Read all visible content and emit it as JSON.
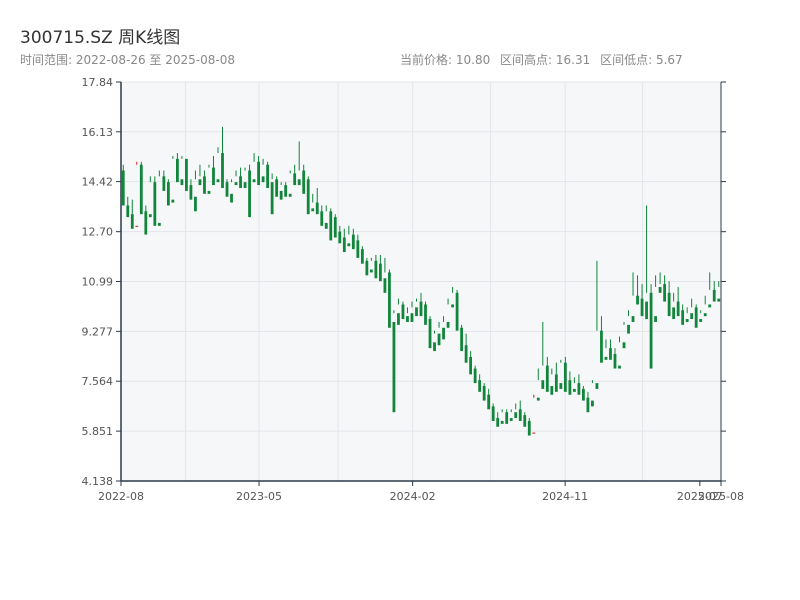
{
  "header": {
    "title": "300715.SZ 周K线图",
    "subtitle": "时间范围: 2022-08-26 至 2025-08-08",
    "current_price": "当前价格: 10.80",
    "range_high": "区间高点: 16.31",
    "range_low": "区间低点: 5.67"
  },
  "colors": {
    "up": "#c8151d",
    "down": "#11863b",
    "plot_bg": "#f6f7f9",
    "grid": "#e3e5ea",
    "axis": "#2b3a4a"
  },
  "chart_data": {
    "type": "candlestick",
    "title": "300715.SZ 周K线图",
    "y_ticks": [
      "4.138",
      "5.851",
      "7.564",
      "9.277",
      "10.99",
      "12.70",
      "14.42",
      "16.13",
      "17.84"
    ],
    "ylim": [
      4.138,
      17.84
    ],
    "x_ticks": [
      {
        "label": "2022-08",
        "date": "2022-08-26"
      },
      {
        "label": "2023-05",
        "date": "2023-05-01"
      },
      {
        "label": "2024-02",
        "date": "2024-02-01"
      },
      {
        "label": "2024-11",
        "date": "2024-11-01"
      },
      {
        "label": "2025-07",
        "date": "2025-07-01"
      },
      {
        "label": "2025-08",
        "date": "2025-08-08"
      }
    ],
    "x_range": [
      "2022-08-26",
      "2025-08-08"
    ],
    "grid": true,
    "ohlc": [
      [
        14.8,
        15.0,
        13.8,
        13.6
      ],
      [
        13.6,
        13.9,
        13.3,
        13.2
      ],
      [
        13.3,
        13.8,
        12.9,
        12.8
      ],
      [
        12.9,
        15.1,
        15.0,
        12.9
      ],
      [
        15.0,
        15.1,
        13.4,
        13.3
      ],
      [
        13.4,
        13.6,
        13.3,
        12.6
      ],
      [
        13.3,
        14.6,
        14.4,
        13.2
      ],
      [
        14.4,
        14.6,
        13.0,
        12.9
      ],
      [
        13.0,
        14.8,
        14.6,
        12.9
      ],
      [
        14.6,
        14.8,
        14.4,
        14.1
      ],
      [
        14.4,
        14.5,
        13.8,
        13.6
      ],
      [
        13.8,
        15.3,
        15.2,
        13.7
      ],
      [
        15.2,
        15.4,
        14.5,
        14.4
      ],
      [
        14.5,
        15.3,
        15.2,
        14.3
      ],
      [
        15.2,
        15.2,
        14.3,
        14.1
      ],
      [
        14.3,
        14.5,
        13.9,
        13.8
      ],
      [
        13.9,
        14.8,
        14.5,
        13.4
      ],
      [
        14.5,
        15.0,
        14.6,
        14.3
      ],
      [
        14.6,
        14.8,
        14.1,
        14.0
      ],
      [
        14.1,
        15.0,
        14.9,
        14.0
      ],
      [
        14.9,
        15.3,
        14.5,
        14.3
      ],
      [
        14.5,
        15.6,
        15.4,
        14.4
      ],
      [
        15.4,
        16.3,
        14.4,
        14.2
      ],
      [
        14.4,
        14.5,
        14.0,
        13.9
      ],
      [
        14.0,
        14.5,
        14.4,
        13.7
      ],
      [
        14.4,
        14.8,
        14.6,
        14.3
      ],
      [
        14.6,
        14.9,
        14.4,
        14.2
      ],
      [
        14.4,
        14.9,
        14.8,
        14.2
      ],
      [
        14.8,
        15.0,
        14.5,
        13.2
      ],
      [
        14.5,
        15.4,
        15.1,
        14.4
      ],
      [
        15.1,
        15.3,
        14.6,
        14.3
      ],
      [
        14.6,
        15.2,
        15.0,
        14.4
      ],
      [
        15.0,
        15.1,
        14.4,
        14.2
      ],
      [
        14.4,
        14.7,
        14.5,
        13.3
      ],
      [
        14.5,
        14.6,
        14.1,
        13.9
      ],
      [
        14.1,
        14.4,
        14.3,
        13.8
      ],
      [
        14.3,
        14.4,
        14.0,
        13.9
      ],
      [
        14.0,
        14.8,
        14.7,
        13.9
      ],
      [
        14.7,
        15.0,
        14.5,
        14.3
      ],
      [
        14.5,
        15.8,
        14.8,
        14.3
      ],
      [
        14.8,
        15.0,
        14.5,
        14.0
      ],
      [
        14.5,
        14.6,
        13.5,
        13.3
      ],
      [
        13.5,
        14.0,
        13.7,
        13.4
      ],
      [
        13.7,
        14.2,
        13.4,
        13.3
      ],
      [
        13.4,
        13.6,
        13.0,
        12.9
      ],
      [
        13.0,
        13.6,
        13.4,
        12.8
      ],
      [
        13.4,
        13.5,
        13.2,
        12.4
      ],
      [
        13.2,
        13.3,
        12.7,
        12.5
      ],
      [
        12.7,
        12.9,
        12.5,
        12.3
      ],
      [
        12.5,
        12.8,
        12.3,
        12.0
      ],
      [
        12.3,
        12.9,
        12.6,
        12.2
      ],
      [
        12.6,
        12.8,
        12.4,
        12.1
      ],
      [
        12.4,
        12.6,
        12.1,
        11.8
      ],
      [
        12.1,
        12.2,
        11.7,
        11.6
      ],
      [
        11.7,
        11.8,
        11.4,
        11.2
      ],
      [
        11.4,
        11.8,
        11.7,
        11.3
      ],
      [
        11.7,
        11.9,
        11.6,
        11.1
      ],
      [
        11.6,
        11.9,
        11.1,
        11.0
      ],
      [
        11.1,
        11.8,
        11.3,
        10.6
      ],
      [
        11.3,
        11.4,
        9.6,
        9.4
      ],
      [
        9.6,
        10.0,
        9.9,
        6.5
      ],
      [
        9.9,
        10.4,
        10.2,
        9.5
      ],
      [
        10.2,
        10.3,
        9.8,
        9.7
      ],
      [
        9.8,
        10.1,
        9.9,
        9.6
      ],
      [
        9.9,
        10.3,
        10.1,
        9.6
      ],
      [
        10.1,
        10.4,
        10.3,
        9.8
      ],
      [
        10.3,
        10.6,
        10.2,
        9.8
      ],
      [
        10.2,
        10.3,
        9.7,
        9.5
      ],
      [
        9.7,
        9.8,
        8.9,
        8.7
      ],
      [
        8.9,
        9.3,
        9.2,
        8.6
      ],
      [
        9.2,
        9.6,
        9.4,
        8.8
      ],
      [
        9.4,
        9.8,
        9.6,
        9.0
      ],
      [
        9.6,
        10.4,
        10.2,
        9.4
      ],
      [
        10.2,
        10.8,
        10.6,
        10.1
      ],
      [
        10.6,
        10.7,
        9.4,
        9.3
      ],
      [
        9.4,
        9.5,
        8.8,
        8.6
      ],
      [
        8.8,
        9.2,
        8.4,
        8.2
      ],
      [
        8.4,
        8.6,
        8.0,
        7.8
      ],
      [
        8.0,
        8.1,
        7.6,
        7.5
      ],
      [
        7.6,
        7.8,
        7.4,
        7.2
      ],
      [
        7.4,
        7.5,
        7.1,
        6.9
      ],
      [
        7.1,
        7.3,
        6.7,
        6.6
      ],
      [
        6.7,
        6.8,
        6.3,
        6.2
      ],
      [
        6.3,
        6.5,
        6.2,
        6.0
      ],
      [
        6.2,
        6.6,
        6.5,
        6.1
      ],
      [
        6.5,
        6.6,
        6.3,
        6.1
      ],
      [
        6.3,
        6.6,
        6.5,
        6.2
      ],
      [
        6.5,
        6.8,
        6.6,
        6.3
      ],
      [
        6.6,
        6.9,
        6.4,
        6.2
      ],
      [
        6.4,
        6.5,
        6.2,
        6.0
      ],
      [
        6.2,
        6.3,
        5.8,
        5.7
      ],
      [
        5.8,
        7.1,
        7.0,
        5.8
      ],
      [
        7.0,
        8.0,
        7.6,
        6.9
      ],
      [
        7.6,
        9.6,
        8.1,
        7.3
      ],
      [
        8.1,
        8.4,
        7.4,
        7.2
      ],
      [
        7.4,
        8.0,
        7.8,
        7.1
      ],
      [
        7.8,
        8.2,
        7.5,
        7.2
      ],
      [
        7.5,
        8.3,
        8.2,
        7.3
      ],
      [
        8.2,
        8.4,
        7.6,
        7.2
      ],
      [
        7.6,
        7.9,
        7.3,
        7.1
      ],
      [
        7.3,
        7.7,
        7.5,
        7.2
      ],
      [
        7.5,
        7.8,
        7.3,
        7.1
      ],
      [
        7.3,
        7.4,
        7.0,
        6.9
      ],
      [
        7.0,
        7.2,
        6.9,
        6.5
      ],
      [
        6.9,
        7.6,
        7.5,
        6.7
      ],
      [
        7.5,
        11.7,
        9.3,
        7.3
      ],
      [
        9.3,
        9.8,
        8.4,
        8.2
      ],
      [
        8.4,
        9.0,
        8.7,
        8.3
      ],
      [
        8.7,
        9.0,
        8.5,
        8.3
      ],
      [
        8.5,
        8.7,
        8.1,
        8.0
      ],
      [
        8.1,
        9.1,
        8.9,
        8.0
      ],
      [
        8.9,
        9.6,
        9.5,
        8.7
      ],
      [
        9.5,
        10.0,
        9.8,
        9.2
      ],
      [
        9.8,
        11.3,
        10.5,
        9.6
      ],
      [
        10.5,
        11.2,
        10.4,
        10.2
      ],
      [
        10.4,
        10.9,
        10.3,
        9.8
      ],
      [
        10.3,
        13.6,
        10.6,
        9.7
      ],
      [
        10.6,
        10.9,
        9.8,
        8.0
      ],
      [
        9.8,
        11.2,
        10.8,
        9.6
      ],
      [
        10.8,
        11.3,
        10.9,
        10.6
      ],
      [
        10.9,
        11.2,
        10.6,
        10.3
      ],
      [
        10.6,
        11.0,
        10.1,
        9.8
      ],
      [
        10.1,
        10.6,
        10.3,
        9.7
      ],
      [
        10.3,
        10.8,
        10.0,
        9.8
      ],
      [
        10.0,
        10.2,
        9.7,
        9.5
      ],
      [
        9.7,
        10.1,
        9.9,
        9.6
      ],
      [
        9.9,
        10.4,
        10.1,
        9.7
      ],
      [
        10.1,
        10.2,
        9.7,
        9.4
      ],
      [
        9.7,
        10.0,
        9.9,
        9.6
      ],
      [
        9.9,
        10.5,
        10.2,
        9.8
      ],
      [
        10.2,
        11.3,
        10.7,
        10.1
      ],
      [
        10.7,
        11.0,
        10.4,
        10.3
      ],
      [
        10.4,
        11.0,
        10.8,
        10.3
      ]
    ]
  }
}
